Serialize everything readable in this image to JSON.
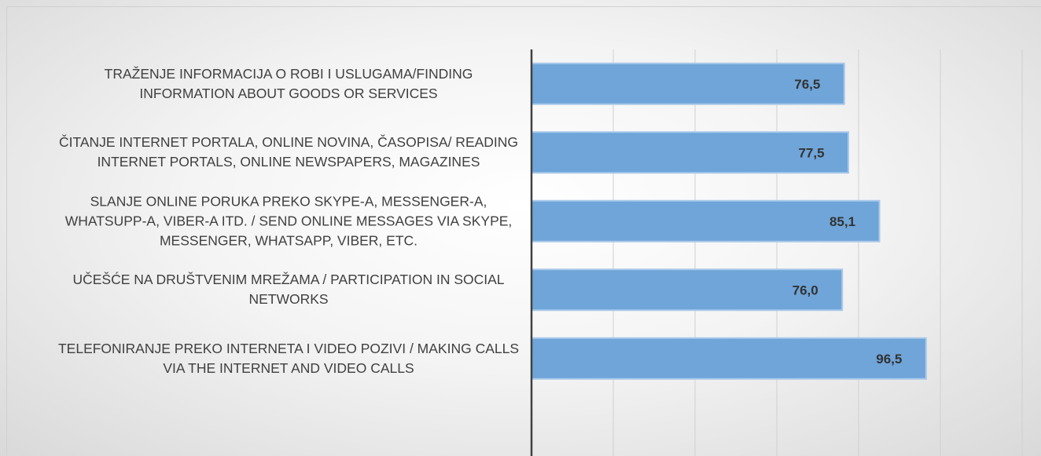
{
  "chart_data": {
    "type": "barh",
    "categories": [
      "TRAŽENJE INFORMACIJA O ROBI I USLUGAMA/FINDING INFORMATION ABOUT GOODS OR SERVICES",
      "ČITANJE INTERNET PORTALA, ONLINE NOVINA, ČASOPISA/ READING INTERNET PORTALS, ONLINE NEWSPAPERS, MAGAZINES",
      "SLANJE ONLINE PORUKA PREKO SKYPE-A, MESSENGER-A, WHATSUPP-A, VIBER-A ITD. / SEND ONLINE MESSAGES VIA SKYPE, MESSENGER, WHATSAPP, VIBER, ETC.",
      "UČEŠĆE NA DRUŠTVENIM MREŽAMA / PARTICIPATION IN SOCIAL NETWORKS",
      "TELEFONIRANJE PREKO INTERNETA I VIDEO POZIVI / MAKING CALLS VIA THE INTERNET AND VIDEO CALLS"
    ],
    "values": [
      76.5,
      77.5,
      85.1,
      76.0,
      96.5
    ],
    "value_labels": [
      "76,5",
      "77,5",
      "85,1",
      "76,0",
      "96,5"
    ],
    "color": "#6fa5d9",
    "xlim": [
      0,
      120
    ],
    "xticks": [
      0,
      20,
      40,
      60,
      80,
      100,
      120
    ],
    "grid": true
  }
}
